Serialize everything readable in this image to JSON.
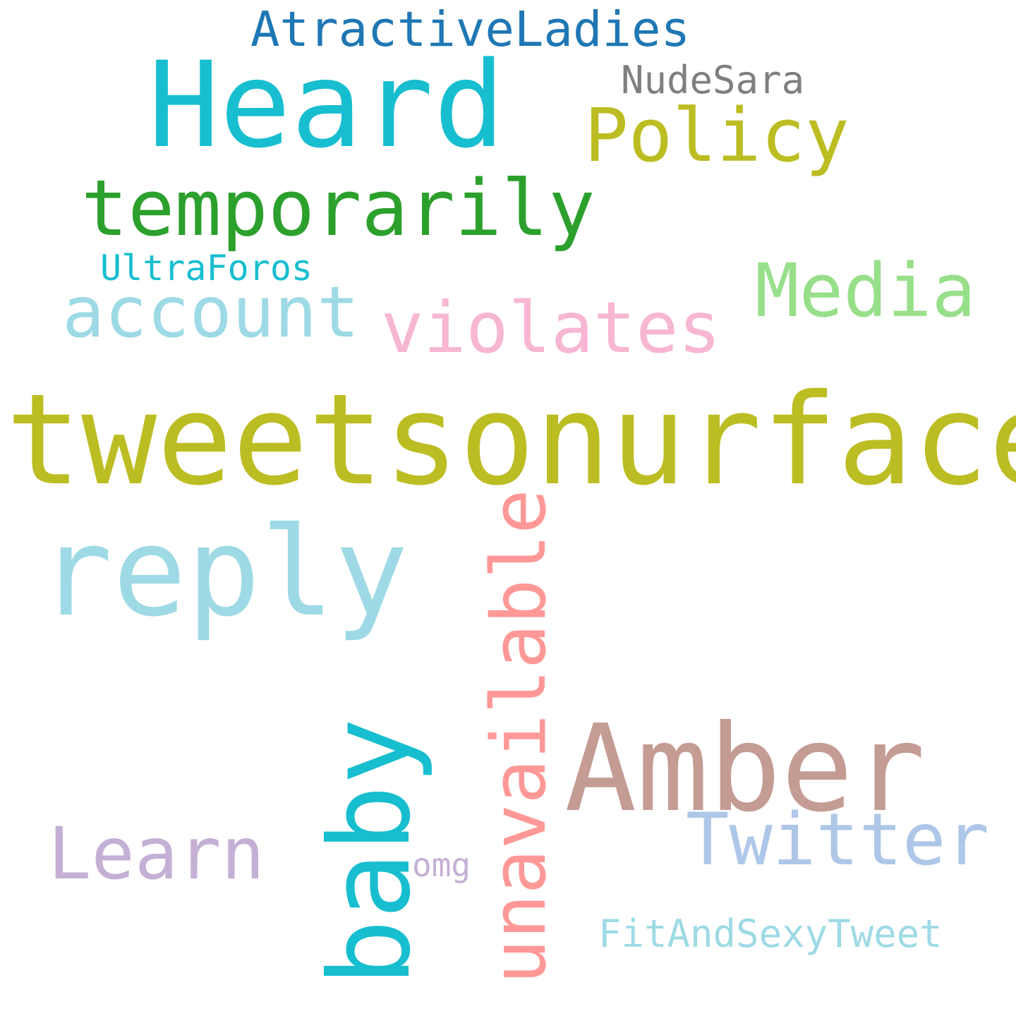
{
  "words": {
    "tweetsonurface": {
      "text": "tweetsonurface",
      "color": "#bcbd22"
    },
    "heard": {
      "text": "Heard",
      "color": "#17becf"
    },
    "amber": {
      "text": "Amber",
      "color": "#c49c94"
    },
    "reply": {
      "text": "reply",
      "color": "#9edae5"
    },
    "temporarily": {
      "text": "temporarily",
      "color": "#2ca02c"
    },
    "policy": {
      "text": "Policy",
      "color": "#bcbd22"
    },
    "violates": {
      "text": "violates",
      "color": "#f7b6d2"
    },
    "account": {
      "text": "account",
      "color": "#9edae5"
    },
    "media": {
      "text": "Media",
      "color": "#98df8a"
    },
    "twitter": {
      "text": "Twitter",
      "color": "#aec7e8"
    },
    "learn": {
      "text": "Learn",
      "color": "#c5b0d5"
    },
    "atractive": {
      "text": "AtractiveLadies",
      "color": "#1f77b4"
    },
    "nudesara": {
      "text": "NudeSara",
      "color": "#7f7f7f"
    },
    "ultraforos": {
      "text": "UltraForos",
      "color": "#17becf"
    },
    "fitandsexy": {
      "text": "FitAndSexyTweet",
      "color": "#9edae5"
    },
    "omg": {
      "text": "omg",
      "color": "#c5b0d5"
    },
    "baby": {
      "text": "baby",
      "color": "#17becf",
      "orientation": "vertical"
    },
    "unavailable": {
      "text": "unavailable",
      "color": "#ff9896",
      "orientation": "vertical"
    }
  }
}
